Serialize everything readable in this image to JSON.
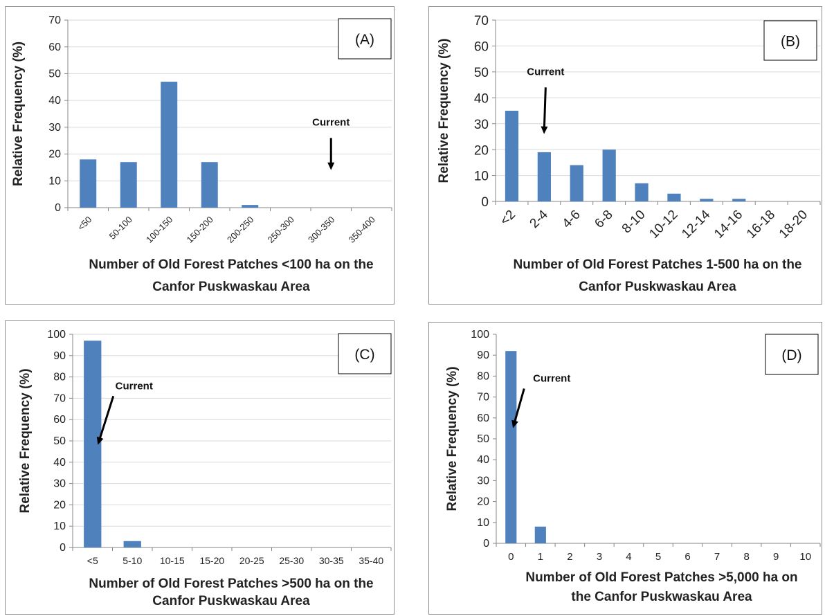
{
  "colors": {
    "bar": "#4f81bd",
    "grid": "#d9d9d9",
    "axis": "#868686",
    "arrow": "#000000"
  },
  "chart_data": [
    {
      "type": "bar",
      "panel_label": "(A)",
      "categories": [
        "<50",
        "50-100",
        "100-150",
        "150-200",
        "200-250",
        "250-300",
        "300-350",
        "350-400"
      ],
      "values": [
        18,
        17,
        47,
        17,
        1,
        0,
        0,
        0
      ],
      "ylabel": "Relative Frequency (%)",
      "xlabel_lines": [
        "Number of Old Forest Patches <100 ha on the",
        "Canfor Puskwaskau Area"
      ],
      "ylim": [
        0,
        70
      ],
      "yticks": [
        0,
        10,
        20,
        30,
        40,
        50,
        60,
        70
      ],
      "grid": true,
      "tick_rotation": "rotated",
      "annotation": {
        "text": "Current",
        "category": "300-350",
        "arrow_top": 26,
        "arrow_bottom": 14
      }
    },
    {
      "type": "bar",
      "panel_label": "(B)",
      "categories": [
        "<2",
        "2-4",
        "4-6",
        "6-8",
        "8-10",
        "10-12",
        "12-14",
        "14-16",
        "16-18",
        "18-20"
      ],
      "values": [
        35,
        19,
        14,
        20,
        7,
        3,
        1,
        1,
        0,
        0
      ],
      "ylabel": "Relative Frequency (%)",
      "xlabel_lines": [
        "Number of Old Forest Patches 1-500 ha on the",
        "Canfor Puskwaskau Area"
      ],
      "ylim": [
        0,
        70
      ],
      "yticks": [
        0,
        10,
        20,
        30,
        40,
        50,
        60,
        70
      ],
      "grid": true,
      "tick_rotation": "rotated",
      "annotation": {
        "text": "Current",
        "category": "2-4",
        "arrow_top": 44,
        "arrow_bottom": 26
      }
    },
    {
      "type": "bar",
      "panel_label": "(C)",
      "categories": [
        "<5",
        "5-10",
        "10-15",
        "15-20",
        "20-25",
        "25-30",
        "30-35",
        "35-40"
      ],
      "values": [
        97,
        3,
        0,
        0,
        0,
        0,
        0,
        0
      ],
      "ylabel": "Relative Frequency (%)",
      "xlabel_lines": [
        "Number of Old Forest Patches >500 ha on the",
        "Canfor Puskwaskau Area"
      ],
      "ylim": [
        0,
        100
      ],
      "yticks": [
        0,
        10,
        20,
        30,
        40,
        50,
        60,
        70,
        80,
        90,
        100
      ],
      "grid": true,
      "tick_rotation": "horizontal",
      "annotation": {
        "text": "Current",
        "category": "<5",
        "arrow_top": 71,
        "arrow_bottom": 48
      }
    },
    {
      "type": "bar",
      "panel_label": "(D)",
      "categories": [
        "0",
        "1",
        "2",
        "3",
        "4",
        "5",
        "6",
        "7",
        "8",
        "9",
        "10"
      ],
      "values": [
        92,
        8,
        0,
        0,
        0,
        0,
        0,
        0,
        0,
        0,
        0
      ],
      "ylabel": "Relative Frequency (%)",
      "xlabel_lines": [
        "Number of Old Forest Patches >5,000 ha on",
        "the Canfor Puskwaskau Area"
      ],
      "ylim": [
        0,
        100
      ],
      "yticks": [
        0,
        10,
        20,
        30,
        40,
        50,
        60,
        70,
        80,
        90,
        100
      ],
      "grid": false,
      "tick_rotation": "horizontal",
      "annotation": {
        "text": "Current",
        "category": "0",
        "arrow_top": 74,
        "arrow_bottom": 55
      }
    }
  ]
}
